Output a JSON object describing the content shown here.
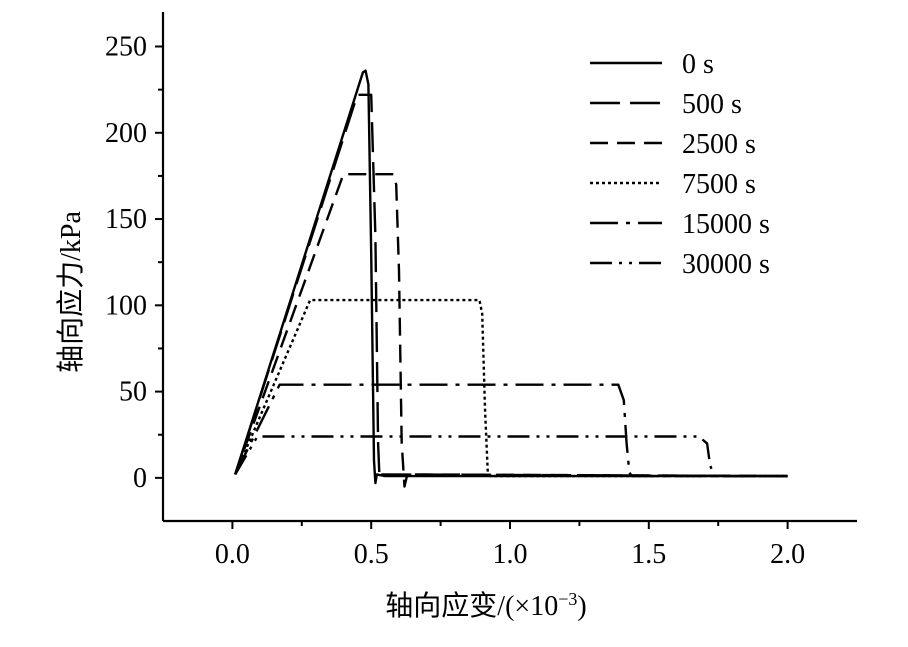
{
  "chart_data": {
    "type": "line",
    "xlabel": "轴向应变/(×10",
    "xlabel_sup": "−3",
    "xlabel_close": ")",
    "ylabel": "轴向应力/kPa",
    "xlim": [
      -0.25,
      2.25
    ],
    "ylim": [
      -25,
      270
    ],
    "xticks": [
      0.0,
      0.5,
      1.0,
      1.5,
      2.0
    ],
    "xtick_labels": [
      "0.0",
      "0.5",
      "1.0",
      "1.5",
      "2.0"
    ],
    "yticks": [
      0,
      50,
      100,
      150,
      200,
      250
    ],
    "ytick_labels": [
      "0",
      "50",
      "100",
      "150",
      "200",
      "250"
    ],
    "legend_position": "top-right",
    "series": [
      {
        "name": "0 s",
        "dash": "solid",
        "points": [
          [
            0.01,
            2
          ],
          [
            0.47,
            235
          ],
          [
            0.48,
            236
          ],
          [
            0.49,
            228
          ],
          [
            0.5,
            130
          ],
          [
            0.51,
            10
          ],
          [
            0.515,
            -3
          ],
          [
            0.52,
            2
          ],
          [
            0.55,
            1
          ],
          [
            2.0,
            1
          ]
        ]
      },
      {
        "name": "500 s",
        "dash": "longdash",
        "points": [
          [
            0.01,
            2
          ],
          [
            0.45,
            222
          ],
          [
            0.5,
            222
          ],
          [
            0.515,
            140
          ],
          [
            0.525,
            20
          ],
          [
            0.53,
            0
          ],
          [
            0.535,
            2
          ],
          [
            2.0,
            1
          ]
        ]
      },
      {
        "name": "2500 s",
        "dash": "dash",
        "points": [
          [
            0.01,
            2
          ],
          [
            0.4,
            176
          ],
          [
            0.58,
            176
          ],
          [
            0.59,
            170
          ],
          [
            0.6,
            120
          ],
          [
            0.61,
            20
          ],
          [
            0.62,
            -5
          ],
          [
            0.63,
            2
          ],
          [
            2.0,
            1
          ]
        ]
      },
      {
        "name": "7500 s",
        "dash": "dot",
        "points": [
          [
            0.01,
            2
          ],
          [
            0.28,
            103
          ],
          [
            0.89,
            103
          ],
          [
            0.9,
            95
          ],
          [
            0.91,
            40
          ],
          [
            0.92,
            3
          ],
          [
            0.93,
            1
          ],
          [
            2.0,
            1
          ]
        ]
      },
      {
        "name": "15000 s",
        "dash": "dashdot",
        "points": [
          [
            0.01,
            2
          ],
          [
            0.17,
            54
          ],
          [
            1.39,
            54
          ],
          [
            1.41,
            45
          ],
          [
            1.42,
            20
          ],
          [
            1.43,
            3
          ],
          [
            1.44,
            1
          ],
          [
            2.0,
            1
          ]
        ]
      },
      {
        "name": "30000 s",
        "dash": "dashdotdot",
        "points": [
          [
            0.01,
            2
          ],
          [
            0.09,
            24
          ],
          [
            1.68,
            24
          ],
          [
            1.71,
            20
          ],
          [
            1.72,
            8
          ],
          [
            1.73,
            3
          ],
          [
            1.74,
            1
          ],
          [
            2.0,
            1
          ]
        ]
      }
    ]
  }
}
